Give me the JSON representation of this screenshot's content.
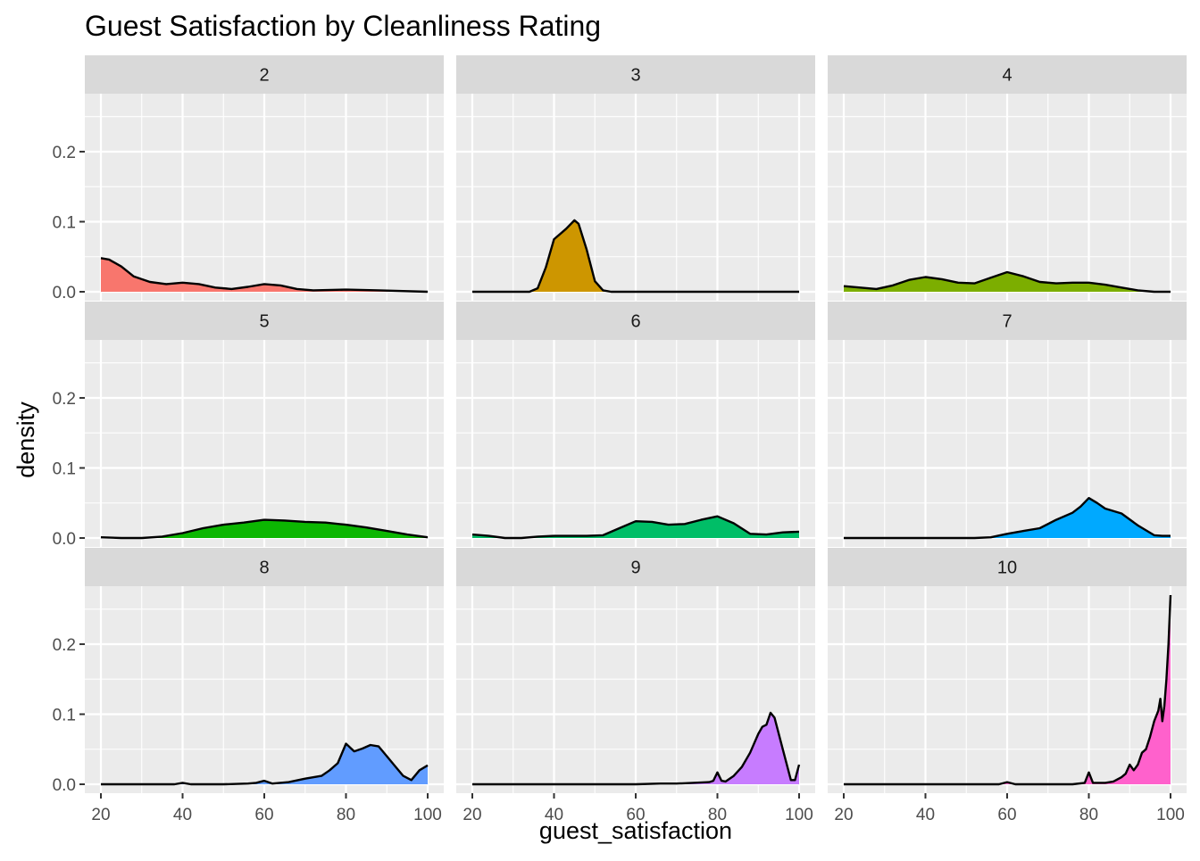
{
  "chart_data": {
    "type": "area",
    "title": "Guest Satisfaction by Cleanliness Rating",
    "xlabel": "guest_satisfaction",
    "ylabel": "density",
    "xlim": [
      20,
      100
    ],
    "ylim": [
      0,
      0.27
    ],
    "x_ticks": [
      20,
      40,
      60,
      80,
      100
    ],
    "y_ticks": [
      0.0,
      0.1,
      0.2
    ],
    "y_tick_labels": [
      "0.0",
      "0.1",
      "0.2"
    ],
    "grid": true,
    "facet_layout": "3x3 grid",
    "series": [
      {
        "facet": "2",
        "color": "#F8766D",
        "points": [
          [
            20,
            0.048
          ],
          [
            22,
            0.046
          ],
          [
            25,
            0.036
          ],
          [
            28,
            0.022
          ],
          [
            32,
            0.014
          ],
          [
            36,
            0.011
          ],
          [
            40,
            0.013
          ],
          [
            44,
            0.011
          ],
          [
            48,
            0.006
          ],
          [
            52,
            0.004
          ],
          [
            56,
            0.007
          ],
          [
            60,
            0.011
          ],
          [
            64,
            0.009
          ],
          [
            68,
            0.004
          ],
          [
            72,
            0.002
          ],
          [
            80,
            0.003
          ],
          [
            88,
            0.002
          ],
          [
            100,
            0.0
          ]
        ]
      },
      {
        "facet": "3",
        "color": "#CD9600",
        "points": [
          [
            20,
            0.0
          ],
          [
            34,
            0.0
          ],
          [
            36,
            0.005
          ],
          [
            38,
            0.035
          ],
          [
            40,
            0.075
          ],
          [
            42,
            0.085
          ],
          [
            43,
            0.09
          ],
          [
            45,
            0.102
          ],
          [
            46,
            0.097
          ],
          [
            48,
            0.06
          ],
          [
            50,
            0.015
          ],
          [
            52,
            0.002
          ],
          [
            54,
            0.0
          ],
          [
            100,
            0.0
          ]
        ]
      },
      {
        "facet": "4",
        "color": "#7CAE00",
        "points": [
          [
            20,
            0.008
          ],
          [
            24,
            0.006
          ],
          [
            28,
            0.004
          ],
          [
            32,
            0.009
          ],
          [
            36,
            0.017
          ],
          [
            40,
            0.021
          ],
          [
            44,
            0.018
          ],
          [
            48,
            0.013
          ],
          [
            52,
            0.012
          ],
          [
            56,
            0.02
          ],
          [
            60,
            0.028
          ],
          [
            64,
            0.022
          ],
          [
            68,
            0.014
          ],
          [
            72,
            0.012
          ],
          [
            76,
            0.013
          ],
          [
            80,
            0.013
          ],
          [
            84,
            0.01
          ],
          [
            88,
            0.006
          ],
          [
            92,
            0.002
          ],
          [
            96,
            0.0
          ],
          [
            100,
            0.0
          ]
        ]
      },
      {
        "facet": "5",
        "color": "#0CB702",
        "points": [
          [
            20,
            0.001
          ],
          [
            25,
            0.0
          ],
          [
            30,
            0.0
          ],
          [
            35,
            0.002
          ],
          [
            40,
            0.007
          ],
          [
            45,
            0.014
          ],
          [
            50,
            0.019
          ],
          [
            55,
            0.022
          ],
          [
            60,
            0.026
          ],
          [
            65,
            0.025
          ],
          [
            70,
            0.023
          ],
          [
            75,
            0.022
          ],
          [
            80,
            0.019
          ],
          [
            85,
            0.015
          ],
          [
            90,
            0.01
          ],
          [
            95,
            0.005
          ],
          [
            100,
            0.001
          ]
        ]
      },
      {
        "facet": "6",
        "color": "#00BE67",
        "points": [
          [
            20,
            0.005
          ],
          [
            24,
            0.003
          ],
          [
            28,
            0.0
          ],
          [
            32,
            0.0
          ],
          [
            36,
            0.002
          ],
          [
            40,
            0.003
          ],
          [
            44,
            0.003
          ],
          [
            48,
            0.003
          ],
          [
            52,
            0.004
          ],
          [
            56,
            0.014
          ],
          [
            60,
            0.024
          ],
          [
            64,
            0.023
          ],
          [
            68,
            0.019
          ],
          [
            72,
            0.02
          ],
          [
            76,
            0.026
          ],
          [
            80,
            0.031
          ],
          [
            84,
            0.021
          ],
          [
            88,
            0.006
          ],
          [
            92,
            0.005
          ],
          [
            96,
            0.008
          ],
          [
            100,
            0.009
          ]
        ]
      },
      {
        "facet": "7",
        "color": "#00A9FF",
        "points": [
          [
            20,
            0.0
          ],
          [
            52,
            0.0
          ],
          [
            56,
            0.001
          ],
          [
            60,
            0.006
          ],
          [
            62,
            0.008
          ],
          [
            64,
            0.01
          ],
          [
            68,
            0.014
          ],
          [
            72,
            0.026
          ],
          [
            76,
            0.036
          ],
          [
            78,
            0.045
          ],
          [
            80,
            0.057
          ],
          [
            82,
            0.05
          ],
          [
            84,
            0.042
          ],
          [
            88,
            0.035
          ],
          [
            92,
            0.018
          ],
          [
            96,
            0.004
          ],
          [
            98,
            0.003
          ],
          [
            100,
            0.003
          ]
        ]
      },
      {
        "facet": "8",
        "color": "#619CFF",
        "points": [
          [
            20,
            0.0
          ],
          [
            38,
            0.0
          ],
          [
            40,
            0.002
          ],
          [
            42,
            0.0
          ],
          [
            50,
            0.0
          ],
          [
            56,
            0.001
          ],
          [
            58,
            0.002
          ],
          [
            60,
            0.005
          ],
          [
            62,
            0.001
          ],
          [
            66,
            0.003
          ],
          [
            70,
            0.008
          ],
          [
            74,
            0.012
          ],
          [
            76,
            0.02
          ],
          [
            78,
            0.03
          ],
          [
            80,
            0.058
          ],
          [
            82,
            0.047
          ],
          [
            84,
            0.051
          ],
          [
            86,
            0.056
          ],
          [
            88,
            0.054
          ],
          [
            90,
            0.04
          ],
          [
            92,
            0.026
          ],
          [
            94,
            0.012
          ],
          [
            96,
            0.006
          ],
          [
            98,
            0.02
          ],
          [
            100,
            0.027
          ]
        ]
      },
      {
        "facet": "9",
        "color": "#C77CFF",
        "points": [
          [
            20,
            0.0
          ],
          [
            60,
            0.0
          ],
          [
            66,
            0.001
          ],
          [
            70,
            0.001
          ],
          [
            74,
            0.002
          ],
          [
            78,
            0.003
          ],
          [
            79,
            0.005
          ],
          [
            80,
            0.017
          ],
          [
            81,
            0.005
          ],
          [
            82,
            0.004
          ],
          [
            84,
            0.012
          ],
          [
            86,
            0.025
          ],
          [
            88,
            0.045
          ],
          [
            90,
            0.072
          ],
          [
            91,
            0.082
          ],
          [
            92,
            0.085
          ],
          [
            93,
            0.102
          ],
          [
            94,
            0.095
          ],
          [
            96,
            0.05
          ],
          [
            98,
            0.006
          ],
          [
            99,
            0.006
          ],
          [
            100,
            0.028
          ]
        ]
      },
      {
        "facet": "10",
        "color": "#FF61CC",
        "points": [
          [
            20,
            0.0
          ],
          [
            58,
            0.0
          ],
          [
            60,
            0.003
          ],
          [
            62,
            0.0
          ],
          [
            76,
            0.0
          ],
          [
            79,
            0.002
          ],
          [
            80,
            0.017
          ],
          [
            81,
            0.002
          ],
          [
            84,
            0.002
          ],
          [
            86,
            0.004
          ],
          [
            88,
            0.01
          ],
          [
            89,
            0.015
          ],
          [
            90,
            0.028
          ],
          [
            91,
            0.02
          ],
          [
            92,
            0.028
          ],
          [
            93,
            0.045
          ],
          [
            94,
            0.05
          ],
          [
            95,
            0.068
          ],
          [
            96,
            0.09
          ],
          [
            97,
            0.105
          ],
          [
            97.5,
            0.122
          ],
          [
            98,
            0.09
          ],
          [
            98.5,
            0.112
          ],
          [
            99,
            0.15
          ],
          [
            99.5,
            0.2
          ],
          [
            100,
            0.27
          ]
        ]
      }
    ]
  }
}
